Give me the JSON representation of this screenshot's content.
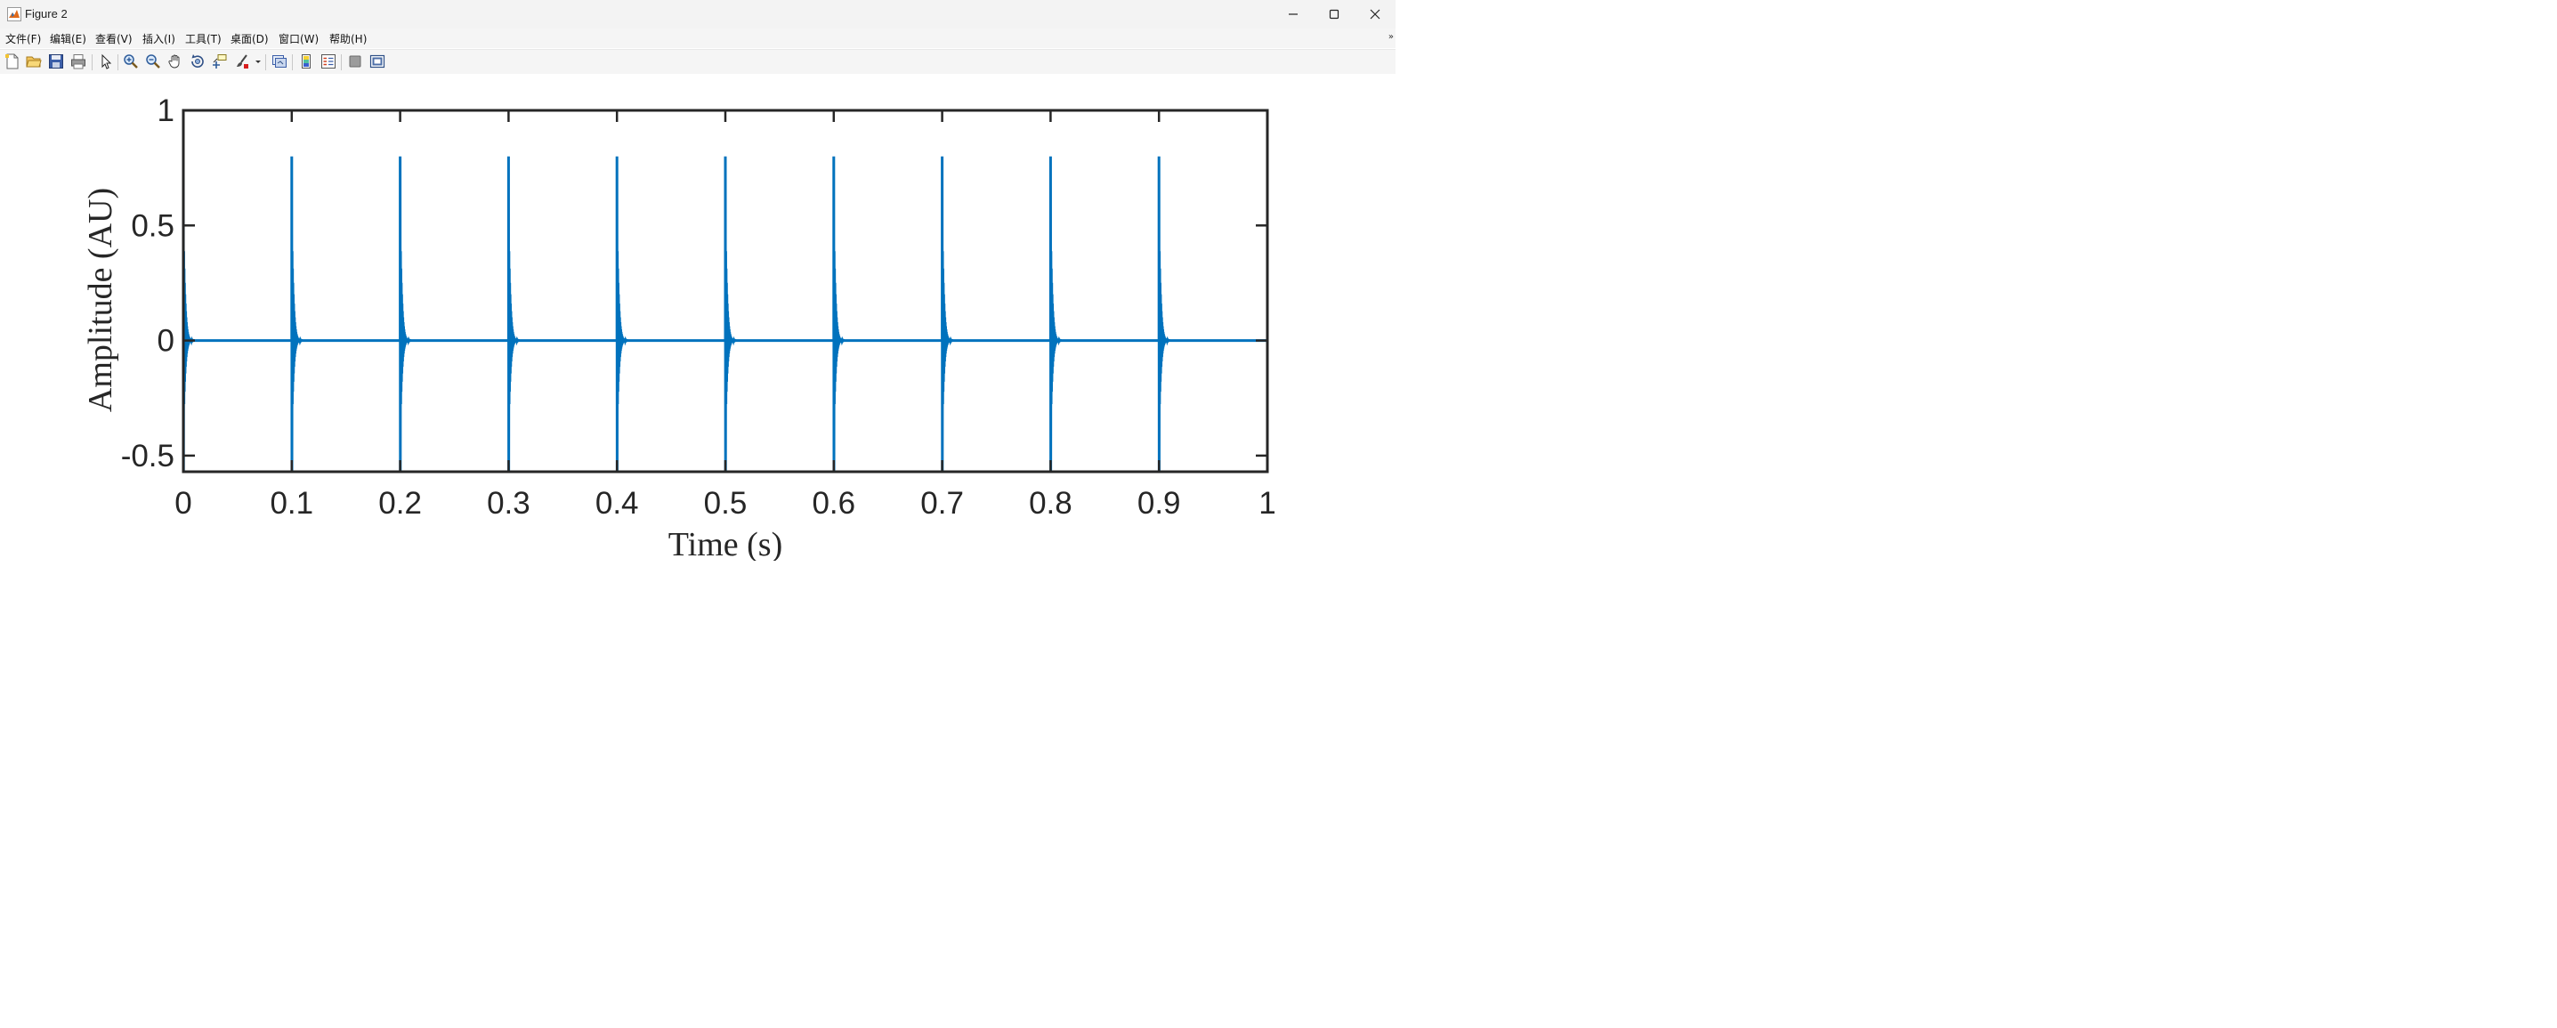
{
  "window": {
    "title": "Figure 2",
    "icon": "matlab-icon",
    "controls": [
      "minimize-icon",
      "maximize-icon",
      "close-icon"
    ]
  },
  "menu": {
    "items": [
      "文件(F)",
      "编辑(E)",
      "查看(V)",
      "插入(I)",
      "工具(T)",
      "桌面(D)",
      "窗口(W)",
      "帮助(H)"
    ],
    "more_icon": "chevron-icon"
  },
  "toolbar": {
    "buttons": [
      "new-figure-icon",
      "open-file-icon",
      "save-icon",
      "print-icon",
      "edit-plot-pointer-icon",
      "zoom-in-icon",
      "zoom-out-icon",
      "pan-hand-icon",
      "rotate-3d-icon",
      "data-cursor-icon",
      "brush-icon",
      "brush-dropdown-icon",
      "link-plot-icon",
      "insert-colorbar-icon",
      "insert-legend-icon",
      "hide-plot-tools-icon",
      "show-plot-tools-icon"
    ]
  },
  "colors": {
    "line": "#0072BD",
    "axes": "#262626",
    "background": "#ffffff"
  },
  "chart_data": {
    "type": "line",
    "title": "",
    "xlabel": "Time (s)",
    "ylabel": "Amplitude (AU)",
    "xlim": [
      0,
      1
    ],
    "ylim": [
      -0.57,
      1
    ],
    "xticks": [
      "0",
      "0.1",
      "0.2",
      "0.3",
      "0.4",
      "0.5",
      "0.6",
      "0.7",
      "0.8",
      "0.9",
      "1"
    ],
    "yticks": [
      "-0.5",
      "0",
      "0.5",
      "1"
    ],
    "grid": false,
    "legend": "none",
    "series": [
      {
        "pulse_times": [
          0,
          0.1,
          0.2,
          0.3,
          0.4,
          0.5,
          0.6,
          0.7,
          0.8,
          0.9
        ],
        "peak_amplitude": 0.8,
        "min_amplitude": -0.57,
        "baseline": 0
      }
    ]
  }
}
